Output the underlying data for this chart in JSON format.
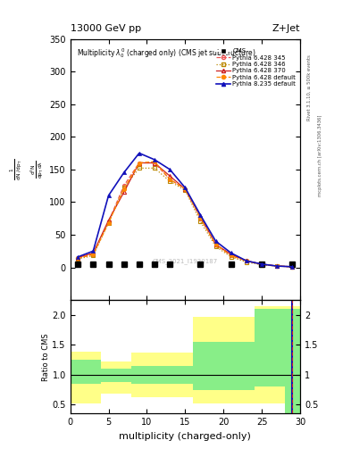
{
  "title_main": "13000 GeV pp",
  "title_right": "Z+Jet",
  "xlabel": "multiplicity (charged-only)",
  "watermark": "CMS_2021_I1920187",
  "xlim": [
    0,
    30
  ],
  "ylim_main": [
    -50,
    350
  ],
  "ylim_ratio": [
    0.35,
    2.25
  ],
  "yticks_main": [
    0,
    50,
    100,
    150,
    200,
    250,
    300,
    350
  ],
  "yticks_ratio": [
    0.5,
    1.0,
    1.5,
    2.0
  ],
  "xticks": [
    0,
    5,
    10,
    15,
    20,
    25,
    30
  ],
  "cms_x": [
    1,
    3,
    5,
    7,
    9,
    11,
    13,
    17,
    21,
    25,
    29
  ],
  "cms_y": [
    5,
    5,
    5,
    5,
    5,
    5,
    5,
    5,
    5,
    5,
    5
  ],
  "py6_345_x": [
    1,
    3,
    5,
    7,
    9,
    11,
    13,
    15,
    17,
    19,
    21,
    23,
    25,
    27,
    29
  ],
  "py6_345_y": [
    14,
    20,
    70,
    125,
    160,
    160,
    135,
    120,
    75,
    35,
    18,
    10,
    5,
    2,
    1
  ],
  "py6_346_x": [
    1,
    3,
    5,
    7,
    9,
    11,
    13,
    15,
    17,
    19,
    21,
    23,
    25,
    27,
    29
  ],
  "py6_346_y": [
    13,
    18,
    68,
    122,
    152,
    152,
    132,
    118,
    70,
    32,
    16,
    8,
    4,
    2,
    1
  ],
  "py6_370_x": [
    1,
    3,
    5,
    7,
    9,
    11,
    13,
    15,
    17,
    19,
    21,
    23,
    25,
    27,
    29
  ],
  "py6_370_y": [
    15,
    22,
    72,
    115,
    160,
    160,
    140,
    120,
    78,
    35,
    20,
    10,
    5,
    2,
    1
  ],
  "py6_def_x": [
    1,
    3,
    5,
    7,
    9,
    11,
    13,
    15,
    17,
    19,
    21,
    23,
    25,
    27,
    29
  ],
  "py6_def_y": [
    14,
    20,
    68,
    120,
    160,
    162,
    135,
    120,
    76,
    35,
    18,
    10,
    4,
    2,
    1
  ],
  "py8_def_x": [
    1,
    3,
    5,
    7,
    9,
    11,
    13,
    15,
    17,
    19,
    21,
    23,
    25,
    27,
    29
  ],
  "py8_def_y": [
    16,
    25,
    110,
    145,
    175,
    165,
    150,
    122,
    80,
    40,
    22,
    10,
    5,
    2,
    1
  ],
  "ratio_edges": [
    0,
    4,
    8,
    12,
    16,
    20,
    22,
    24,
    26,
    28,
    29,
    30
  ],
  "ratio_green_lo": [
    0.85,
    0.88,
    0.85,
    0.85,
    0.75,
    0.75,
    0.75,
    0.8,
    0.8,
    0.35,
    0.35
  ],
  "ratio_green_hi": [
    1.25,
    1.1,
    1.15,
    1.15,
    1.55,
    1.55,
    1.55,
    2.1,
    2.1,
    2.1,
    2.1
  ],
  "ratio_yellow_lo": [
    0.52,
    0.68,
    0.63,
    0.63,
    0.52,
    0.52,
    0.52,
    0.52,
    0.52,
    0.35,
    0.35
  ],
  "ratio_yellow_hi": [
    1.38,
    1.22,
    1.37,
    1.37,
    1.97,
    1.97,
    1.97,
    2.15,
    2.15,
    2.15,
    2.15
  ],
  "col_cms": "#000000",
  "col_py6_345": "#ee5555",
  "col_py6_346": "#bb8800",
  "col_py6_370": "#cc2222",
  "col_py6_def": "#ff8800",
  "col_py8_def": "#1111bb",
  "right_text1": "Rivet 3.1.10, ≥ 500k events",
  "right_text2": "mcplots.cern.ch [arXiv:1306.3436]"
}
